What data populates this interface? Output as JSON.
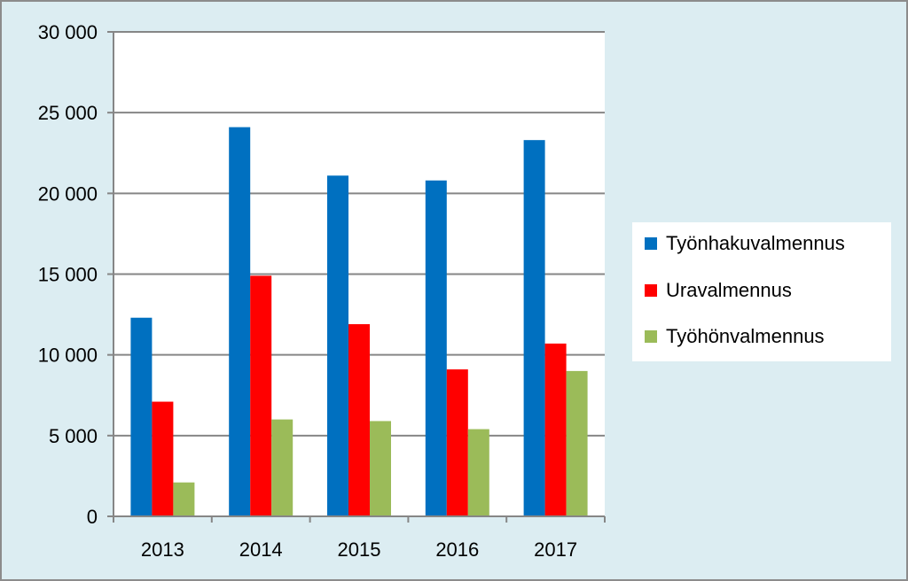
{
  "chart_data": {
    "type": "bar",
    "title": "",
    "xlabel": "",
    "ylabel": "",
    "categories": [
      "2013",
      "2014",
      "2015",
      "2016",
      "2017"
    ],
    "ylim": [
      0,
      30000
    ],
    "yticks": [
      0,
      5000,
      10000,
      15000,
      20000,
      25000,
      30000
    ],
    "ytick_labels": [
      "0",
      "5 000",
      "10 000",
      "15 000",
      "20 000",
      "25 000",
      "30 000"
    ],
    "grid": true,
    "legend_position": "right",
    "series": [
      {
        "name": "Työnhakuvalmennus",
        "color": "#0070c0",
        "values": [
          12300,
          24100,
          21100,
          20800,
          23300
        ]
      },
      {
        "name": "Uravalmennus",
        "color": "#ff0000",
        "values": [
          7100,
          14900,
          11900,
          9100,
          10700
        ]
      },
      {
        "name": "Työhönvalmennus",
        "color": "#9bbb59",
        "values": [
          2100,
          6000,
          5900,
          5400,
          9000
        ]
      }
    ]
  }
}
